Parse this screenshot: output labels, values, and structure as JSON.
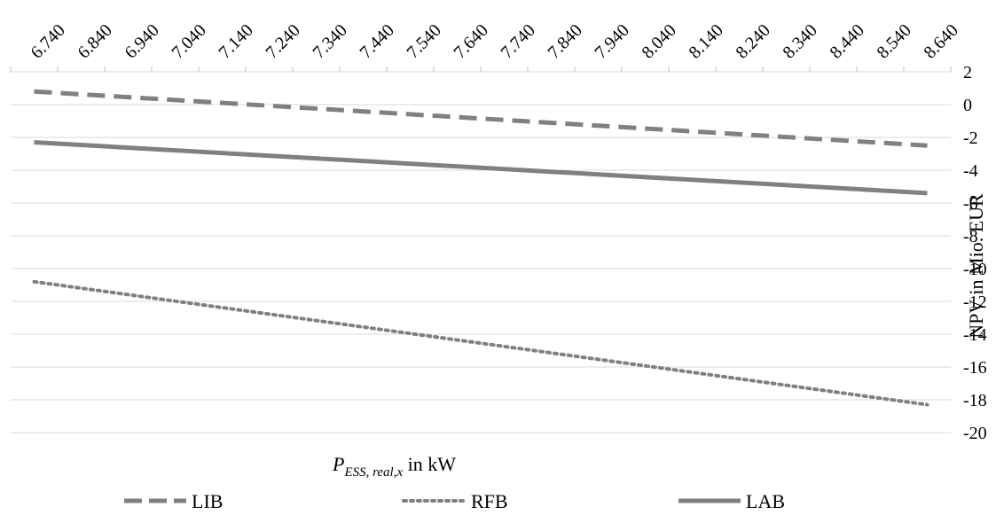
{
  "chart_data": {
    "type": "line",
    "title": "",
    "xlabel": "P_ESS, real,x in kW",
    "xlabel_parts": {
      "base": "P",
      "subscript": "ESS, real,x",
      "suffix": " in kW"
    },
    "ylabel": "NPV in Mio. EUR",
    "x_position": "top",
    "y_position": "right",
    "categories": [
      "6.740",
      "6.840",
      "6.940",
      "7.040",
      "7.140",
      "7.240",
      "7.340",
      "7.440",
      "7.540",
      "7.640",
      "7.740",
      "7.840",
      "7.940",
      "8.040",
      "8.140",
      "8.240",
      "8.340",
      "8.440",
      "8.540",
      "8.640"
    ],
    "ylim": [
      -20,
      2
    ],
    "yticks": [
      2,
      0,
      -2,
      -4,
      -6,
      -8,
      -10,
      -12,
      -14,
      -16,
      -18,
      -20
    ],
    "grid": true,
    "legend": "bottom",
    "series": [
      {
        "name": "LIB",
        "style": "dashed",
        "color": "#808080",
        "x_start": 6.74,
        "x_end": 8.64,
        "y_start": 0.8,
        "y_end": -2.5
      },
      {
        "name": "RFB",
        "style": "dotted",
        "color": "#808080",
        "x_start": 6.74,
        "x_end": 8.64,
        "y_start": -10.8,
        "y_end": -18.3
      },
      {
        "name": "LAB",
        "style": "solid",
        "color": "#808080",
        "x_start": 6.74,
        "x_end": 8.64,
        "y_start": -2.3,
        "y_end": -5.4
      }
    ]
  }
}
